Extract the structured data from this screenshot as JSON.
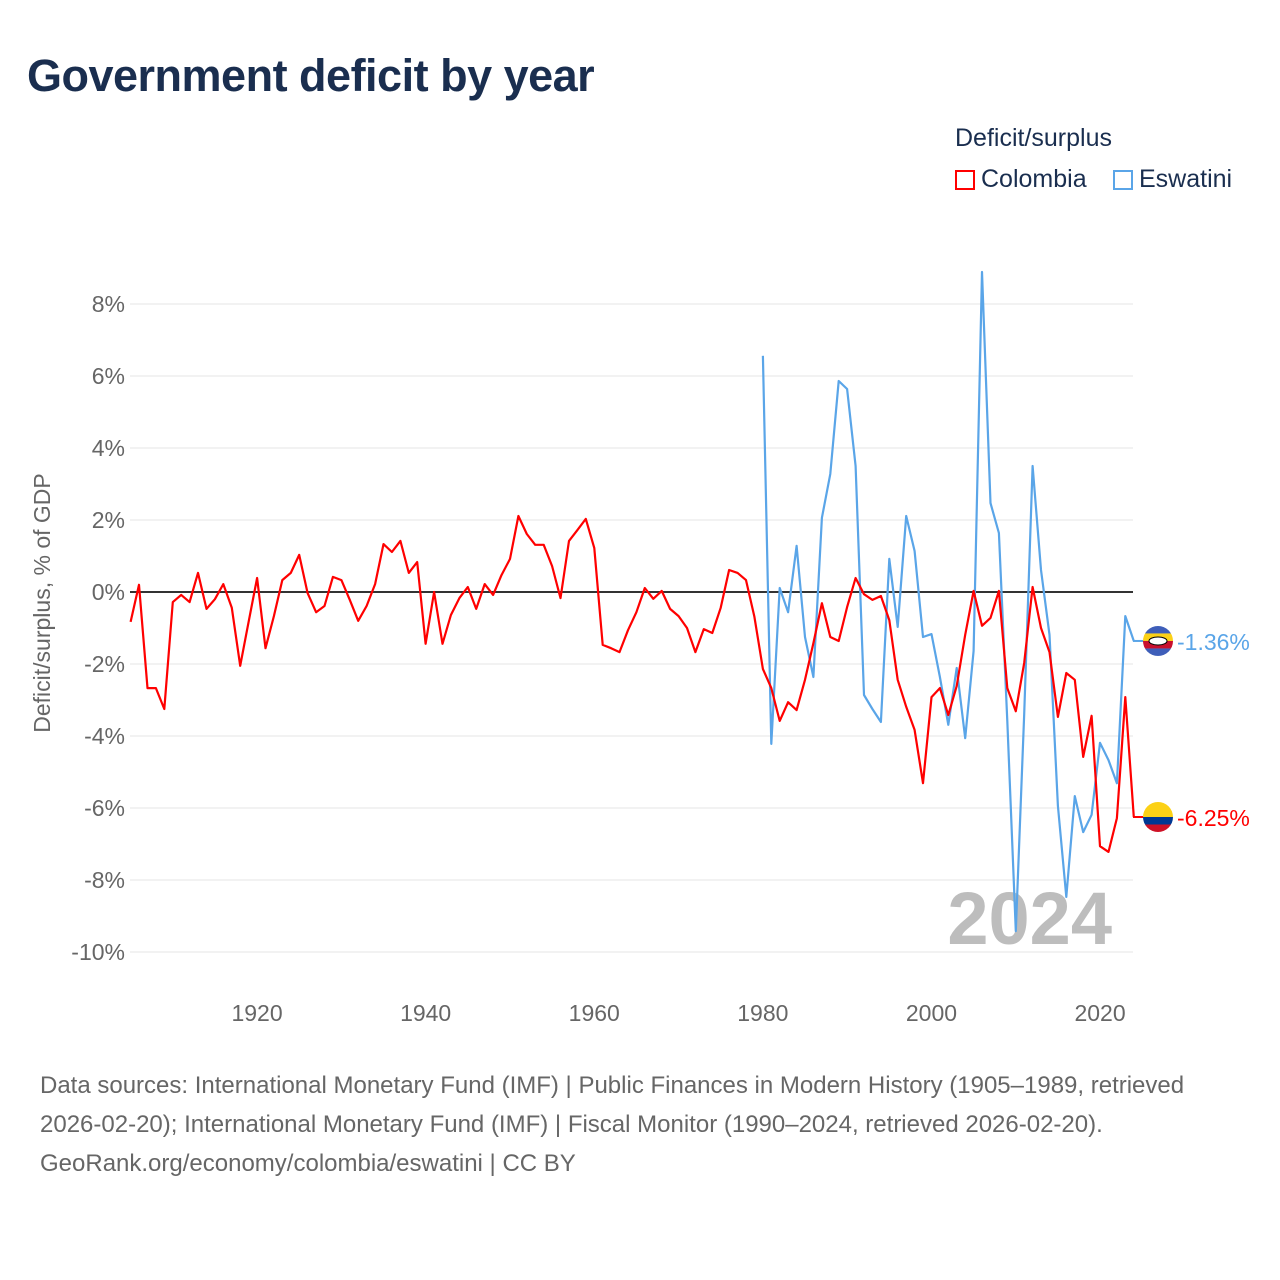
{
  "title": "Government deficit by year",
  "legend": {
    "title": "Deficit/surplus",
    "items": [
      {
        "label": "Colombia",
        "color": "#ff0000"
      },
      {
        "label": "Eswatini",
        "color": "#5aa5e8"
      }
    ]
  },
  "footer": {
    "sources": "Data sources: International Monetary Fund (IMF) | Public Finances in Modern History (1905–1989, retrieved 2026-02-20); International Monetary Fund (IMF) | Fiscal Monitor (1990–2024, retrieved 2026-02-20).",
    "credit": "GeoRank.org/economy/colombia/eswatini | CC BY"
  },
  "chart_data": {
    "type": "line",
    "title": "Government deficit by year",
    "xlabel": "",
    "ylabel": "Deficit/surplus, % of GDP",
    "xlim": [
      1905,
      2024
    ],
    "ylim": [
      -10.6,
      9
    ],
    "x_ticks": [
      1920,
      1940,
      1960,
      1980,
      2000,
      2020
    ],
    "y_ticks": [
      8,
      6,
      4,
      2,
      0,
      -2,
      -4,
      -6,
      -8,
      -10
    ],
    "y_tick_labels": [
      "8%",
      "6%",
      "4%",
      "2%",
      "0%",
      "-2%",
      "-4%",
      "-6%",
      "-8%",
      "-10%"
    ],
    "grid": true,
    "legend_position": "top-right",
    "year_label": "2024",
    "series": [
      {
        "name": "Colombia",
        "color": "#ff0000",
        "start_year": 1905,
        "end_label": "-6.25%",
        "values": [
          -0.83,
          0.2,
          -2.67,
          -2.67,
          -3.25,
          -0.28,
          -0.08,
          -0.28,
          0.53,
          -0.47,
          -0.2,
          0.22,
          -0.44,
          -2.05,
          -0.83,
          0.39,
          -1.56,
          -0.67,
          0.33,
          0.53,
          1.03,
          -0.03,
          -0.56,
          -0.39,
          0.42,
          0.33,
          -0.22,
          -0.8,
          -0.39,
          0.22,
          1.33,
          1.11,
          1.42,
          0.53,
          0.83,
          -1.44,
          0,
          -1.44,
          -0.64,
          -0.17,
          0.14,
          -0.47,
          0.22,
          -0.08,
          0.47,
          0.92,
          2.11,
          1.61,
          1.31,
          1.31,
          0.72,
          -0.17,
          1.42,
          1.72,
          2.03,
          1.22,
          -1.47,
          -1.56,
          -1.67,
          -1.06,
          -0.56,
          0.11,
          -0.19,
          0.03,
          -0.47,
          -0.67,
          -1.0,
          -1.67,
          -1.03,
          -1.14,
          -0.44,
          0.61,
          0.53,
          0.33,
          -0.69,
          -2.14,
          -2.67,
          -3.58,
          -3.06,
          -3.28,
          -2.44,
          -1.42,
          -0.31,
          -1.25,
          -1.36,
          -0.42,
          0.39,
          -0.06,
          -0.22,
          -0.11,
          -0.78,
          -2.44,
          -3.19,
          -3.83,
          -5.31,
          -2.92,
          -2.67,
          -3.42,
          -2.61,
          -1.19,
          0.03,
          -0.94,
          -0.72,
          0.03,
          -2.67,
          -3.31,
          -1.97,
          0.14,
          -1.0,
          -1.67,
          -3.47,
          -2.25,
          -2.44,
          -4.58,
          -3.44,
          -7.06,
          -7.22,
          -6.28,
          -2.92,
          -6.25
        ]
      },
      {
        "name": "Eswatini",
        "color": "#5aa5e8",
        "start_year": 1980,
        "end_label": "-1.36%",
        "values": [
          6.56,
          -4.22,
          0.11,
          -0.56,
          1.28,
          -1.25,
          -2.36,
          2.06,
          3.28,
          5.86,
          5.64,
          3.5,
          -2.86,
          -3.25,
          -3.61,
          0.92,
          -0.97,
          2.11,
          1.14,
          -1.25,
          -1.17,
          -2.36,
          -3.69,
          -2.11,
          -4.06,
          -1.64,
          8.89,
          2.47,
          1.64,
          -3.58,
          -9.42,
          -3.39,
          3.5,
          0.61,
          -1.19,
          -5.94,
          -8.47,
          -5.67,
          -6.67,
          -6.19,
          -4.19,
          -4.67,
          -5.31,
          -0.67,
          -1.36
        ]
      }
    ]
  }
}
